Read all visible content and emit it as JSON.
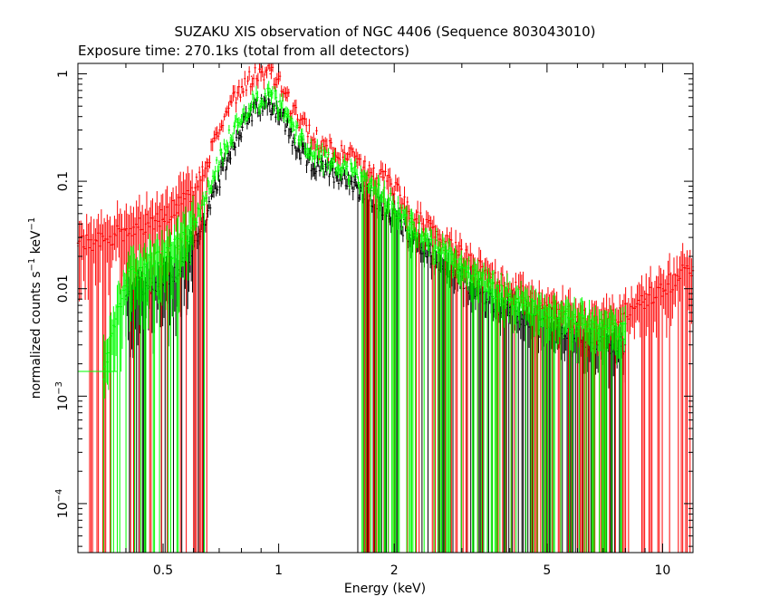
{
  "chart_data": {
    "type": "scatter",
    "title": "SUZAKU XIS observation of NGC 4406 (Sequence 803043010)",
    "subtitle": "Exposure time: 270.1ks (total from all detectors)",
    "xlabel": "Energy (keV)",
    "ylabel": {
      "base": "normalized counts s",
      "base_exp": "−1",
      "unit": " keV",
      "unit_exp": "−1"
    },
    "x_scale": "log",
    "y_scale": "log",
    "xlim": [
      0.3,
      12
    ],
    "ylim": [
      3.5e-05,
      1.25
    ],
    "x_ticks": [
      {
        "value": 0.5,
        "label": "0.5"
      },
      {
        "value": 1,
        "label": "1"
      },
      {
        "value": 2,
        "label": "2"
      },
      {
        "value": 5,
        "label": "5"
      },
      {
        "value": 10,
        "label": "10"
      }
    ],
    "y_ticks": [
      {
        "value": 1,
        "label": "1",
        "exp": ""
      },
      {
        "value": 0.1,
        "label": "0.1",
        "exp": ""
      },
      {
        "value": 0.01,
        "label": "0.01",
        "exp": ""
      },
      {
        "value": 0.001,
        "label": "10",
        "exp": "−3"
      },
      {
        "value": 0.0001,
        "label": "10",
        "exp": "−4"
      }
    ],
    "grid": false,
    "series": [
      {
        "color": "#ff0000",
        "points": [
          [
            0.3,
            0.025
          ],
          [
            0.35,
            0.028
          ],
          [
            0.4,
            0.035
          ],
          [
            0.45,
            0.04
          ],
          [
            0.5,
            0.045
          ],
          [
            0.55,
            0.06
          ],
          [
            0.6,
            0.08
          ],
          [
            0.65,
            0.15
          ],
          [
            0.7,
            0.3
          ],
          [
            0.75,
            0.55
          ],
          [
            0.8,
            0.75
          ],
          [
            0.85,
            0.95
          ],
          [
            0.9,
            1.05
          ],
          [
            0.95,
            1.0
          ],
          [
            1.0,
            0.85
          ],
          [
            1.05,
            0.6
          ],
          [
            1.1,
            0.42
          ],
          [
            1.2,
            0.28
          ],
          [
            1.3,
            0.22
          ],
          [
            1.4,
            0.2
          ],
          [
            1.5,
            0.18
          ],
          [
            1.6,
            0.15
          ],
          [
            1.7,
            0.12
          ],
          [
            1.85,
            0.11
          ],
          [
            2.0,
            0.09
          ],
          [
            2.2,
            0.05
          ],
          [
            2.5,
            0.035
          ],
          [
            3.0,
            0.02
          ],
          [
            3.5,
            0.014
          ],
          [
            4.0,
            0.01
          ],
          [
            5.0,
            0.007
          ],
          [
            6.0,
            0.0055
          ],
          [
            7.0,
            0.005
          ],
          [
            8.0,
            0.006
          ],
          [
            9.0,
            0.008
          ],
          [
            10.0,
            0.01
          ],
          [
            11.0,
            0.013
          ],
          [
            12.0,
            0.016
          ]
        ]
      },
      {
        "color": "#000000",
        "points": [
          [
            0.4,
            0.008
          ],
          [
            0.45,
            0.01
          ],
          [
            0.5,
            0.012
          ],
          [
            0.55,
            0.015
          ],
          [
            0.6,
            0.025
          ],
          [
            0.65,
            0.05
          ],
          [
            0.7,
            0.1
          ],
          [
            0.75,
            0.2
          ],
          [
            0.8,
            0.32
          ],
          [
            0.85,
            0.42
          ],
          [
            0.9,
            0.5
          ],
          [
            0.95,
            0.52
          ],
          [
            1.0,
            0.45
          ],
          [
            1.05,
            0.32
          ],
          [
            1.1,
            0.22
          ],
          [
            1.2,
            0.15
          ],
          [
            1.3,
            0.13
          ],
          [
            1.4,
            0.12
          ],
          [
            1.5,
            0.11
          ],
          [
            1.6,
            0.09
          ],
          [
            1.7,
            0.07
          ],
          [
            1.85,
            0.06
          ],
          [
            2.0,
            0.05
          ],
          [
            2.2,
            0.03
          ],
          [
            2.5,
            0.02
          ],
          [
            3.0,
            0.012
          ],
          [
            3.5,
            0.008
          ],
          [
            4.0,
            0.006
          ],
          [
            5.0,
            0.0045
          ],
          [
            6.0,
            0.0035
          ],
          [
            7.0,
            0.003
          ],
          [
            8.0,
            0.003
          ]
        ]
      },
      {
        "color": "#00ff00",
        "points": [
          [
            0.35,
            0.0017
          ],
          [
            0.4,
            0.012
          ],
          [
            0.45,
            0.016
          ],
          [
            0.5,
            0.02
          ],
          [
            0.55,
            0.025
          ],
          [
            0.6,
            0.04
          ],
          [
            0.65,
            0.08
          ],
          [
            0.7,
            0.15
          ],
          [
            0.75,
            0.27
          ],
          [
            0.8,
            0.4
          ],
          [
            0.85,
            0.52
          ],
          [
            0.9,
            0.6
          ],
          [
            0.95,
            0.62
          ],
          [
            1.0,
            0.55
          ],
          [
            1.05,
            0.4
          ],
          [
            1.1,
            0.3
          ],
          [
            1.2,
            0.2
          ],
          [
            1.3,
            0.17
          ],
          [
            1.4,
            0.15
          ],
          [
            1.5,
            0.13
          ],
          [
            1.6,
            0.11
          ],
          [
            1.7,
            0.09
          ],
          [
            1.85,
            0.075
          ],
          [
            2.0,
            0.06
          ],
          [
            2.2,
            0.04
          ],
          [
            2.5,
            0.026
          ],
          [
            3.0,
            0.016
          ],
          [
            3.5,
            0.011
          ],
          [
            4.0,
            0.008
          ],
          [
            5.0,
            0.006
          ],
          [
            6.0,
            0.0048
          ],
          [
            7.0,
            0.0042
          ],
          [
            8.0,
            0.004
          ]
        ]
      }
    ]
  }
}
